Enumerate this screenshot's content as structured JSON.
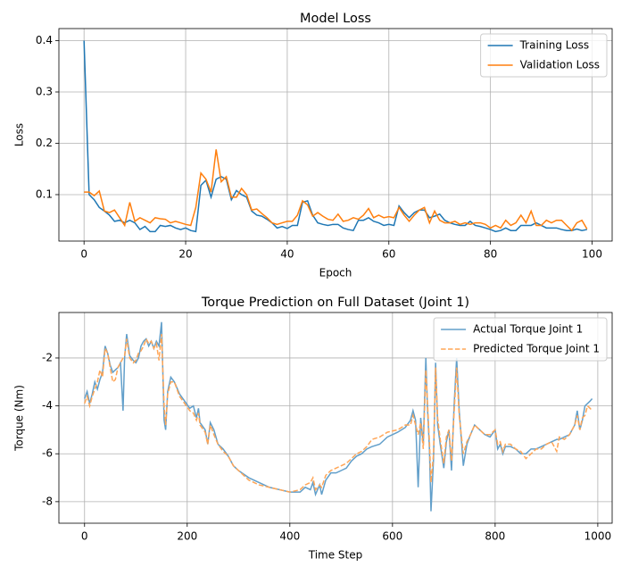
{
  "chart_data": [
    {
      "type": "line",
      "title": "Model Loss",
      "x_label": "Epoch",
      "y_label": "Loss",
      "x": [
        0,
        1,
        2,
        3,
        4,
        5,
        6,
        7,
        8,
        9,
        10,
        11,
        12,
        13,
        14,
        15,
        16,
        17,
        18,
        19,
        20,
        21,
        22,
        23,
        24,
        25,
        26,
        27,
        28,
        29,
        30,
        31,
        32,
        33,
        34,
        35,
        36,
        37,
        38,
        39,
        40,
        41,
        42,
        43,
        44,
        45,
        46,
        47,
        48,
        49,
        50,
        51,
        52,
        53,
        54,
        55,
        56,
        57,
        58,
        59,
        60,
        61,
        62,
        63,
        64,
        65,
        66,
        67,
        68,
        69,
        70,
        71,
        72,
        73,
        74,
        75,
        76,
        77,
        78,
        79,
        80,
        81,
        82,
        83,
        84,
        85,
        86,
        87,
        88,
        89,
        90,
        91,
        92,
        93,
        94,
        95,
        96,
        97,
        98,
        99
      ],
      "series": [
        {
          "name": "Training Loss",
          "color": "#1f77b4",
          "linestyle": "solid",
          "values": [
            0.4,
            0.1,
            0.09,
            0.075,
            0.068,
            0.06,
            0.048,
            0.05,
            0.045,
            0.05,
            0.045,
            0.032,
            0.038,
            0.028,
            0.028,
            0.04,
            0.038,
            0.04,
            0.035,
            0.032,
            0.035,
            0.03,
            0.028,
            0.118,
            0.128,
            0.095,
            0.13,
            0.135,
            0.13,
            0.09,
            0.108,
            0.1,
            0.095,
            0.068,
            0.06,
            0.058,
            0.052,
            0.045,
            0.035,
            0.038,
            0.034,
            0.04,
            0.04,
            0.085,
            0.088,
            0.06,
            0.045,
            0.042,
            0.04,
            0.042,
            0.042,
            0.035,
            0.032,
            0.03,
            0.05,
            0.05,
            0.055,
            0.048,
            0.045,
            0.04,
            0.042,
            0.04,
            0.078,
            0.065,
            0.055,
            0.065,
            0.07,
            0.07,
            0.055,
            0.058,
            0.062,
            0.05,
            0.045,
            0.042,
            0.04,
            0.04,
            0.048,
            0.04,
            0.038,
            0.035,
            0.032,
            0.028,
            0.03,
            0.035,
            0.03,
            0.03,
            0.04,
            0.04,
            0.04,
            0.045,
            0.04,
            0.035,
            0.035,
            0.035,
            0.032,
            0.03,
            0.03,
            0.033,
            0.03,
            0.032
          ]
        },
        {
          "name": "Validation Loss",
          "color": "#ff7f0e",
          "linestyle": "solid",
          "values": [
            0.105,
            0.105,
            0.098,
            0.107,
            0.068,
            0.065,
            0.07,
            0.055,
            0.04,
            0.085,
            0.048,
            0.055,
            0.05,
            0.045,
            0.055,
            0.053,
            0.052,
            0.045,
            0.048,
            0.045,
            0.042,
            0.04,
            0.075,
            0.142,
            0.13,
            0.105,
            0.188,
            0.125,
            0.135,
            0.095,
            0.095,
            0.112,
            0.1,
            0.07,
            0.072,
            0.063,
            0.055,
            0.045,
            0.042,
            0.045,
            0.048,
            0.048,
            0.06,
            0.088,
            0.08,
            0.058,
            0.065,
            0.058,
            0.052,
            0.05,
            0.062,
            0.048,
            0.05,
            0.055,
            0.052,
            0.06,
            0.073,
            0.055,
            0.06,
            0.055,
            0.057,
            0.055,
            0.075,
            0.06,
            0.048,
            0.06,
            0.07,
            0.075,
            0.045,
            0.068,
            0.05,
            0.045,
            0.045,
            0.048,
            0.042,
            0.045,
            0.042,
            0.045,
            0.045,
            0.042,
            0.035,
            0.04,
            0.035,
            0.05,
            0.04,
            0.045,
            0.06,
            0.045,
            0.068,
            0.04,
            0.04,
            0.05,
            0.045,
            0.05,
            0.05,
            0.04,
            0.03,
            0.045,
            0.05,
            0.033
          ]
        }
      ],
      "xlim": [
        -4.95,
        103.95
      ],
      "ylim": [
        0.0095,
        0.4235
      ],
      "xticks": [
        0,
        20,
        40,
        60,
        80,
        100
      ],
      "yticks": [
        0.1,
        0.2,
        0.3,
        0.4
      ],
      "grid": true,
      "legend": "upper right"
    },
    {
      "type": "line",
      "title": "Torque Prediction on Full Dataset (Joint 1)",
      "x_label": "Time Step",
      "y_label": "Torque (Nm)",
      "x": [
        0,
        5,
        10,
        15,
        20,
        25,
        30,
        35,
        40,
        45,
        50,
        55,
        60,
        65,
        70,
        75,
        78,
        82,
        88,
        95,
        100,
        105,
        110,
        115,
        120,
        125,
        130,
        135,
        140,
        145,
        150,
        155,
        158,
        162,
        168,
        175,
        185,
        195,
        205,
        212,
        218,
        222,
        225,
        235,
        240,
        245,
        252,
        260,
        270,
        280,
        290,
        300,
        320,
        340,
        360,
        380,
        400,
        420,
        430,
        440,
        445,
        450,
        458,
        462,
        470,
        480,
        490,
        500,
        510,
        520,
        530,
        540,
        550,
        560,
        575,
        590,
        610,
        625,
        635,
        640,
        645,
        650,
        655,
        660,
        665,
        668,
        672,
        675,
        680,
        684,
        688,
        693,
        700,
        705,
        710,
        715,
        720,
        725,
        730,
        738,
        745,
        752,
        760,
        770,
        780,
        790,
        800,
        805,
        810,
        815,
        820,
        830,
        840,
        850,
        860,
        870,
        880,
        890,
        900,
        910,
        920,
        925,
        935,
        945,
        955,
        960,
        965,
        970,
        975,
        980,
        985,
        989
      ],
      "series": [
        {
          "name": "Actual Torque Joint 1",
          "color": "#629fca",
          "linestyle": "solid",
          "values": [
            -3.7,
            -3.4,
            -3.9,
            -3.5,
            -3.0,
            -3.3,
            -2.9,
            -2.6,
            -1.5,
            -1.8,
            -2.3,
            -2.6,
            -2.5,
            -2.4,
            -2.2,
            -4.2,
            -2.0,
            -1.0,
            -1.9,
            -2.1,
            -2.2,
            -2.0,
            -1.5,
            -1.3,
            -1.2,
            -1.5,
            -1.3,
            -1.6,
            -1.3,
            -1.5,
            -0.5,
            -4.6,
            -5.0,
            -3.4,
            -2.8,
            -3.0,
            -3.5,
            -3.8,
            -4.1,
            -4.0,
            -4.5,
            -4.1,
            -4.7,
            -5.0,
            -5.6,
            -4.7,
            -5.0,
            -5.6,
            -5.8,
            -6.1,
            -6.5,
            -6.7,
            -7.0,
            -7.2,
            -7.4,
            -7.5,
            -7.6,
            -7.6,
            -7.4,
            -7.5,
            -7.2,
            -7.7,
            -7.3,
            -7.7,
            -7.1,
            -6.8,
            -6.8,
            -6.7,
            -6.6,
            -6.3,
            -6.1,
            -6.0,
            -5.8,
            -5.7,
            -5.6,
            -5.3,
            -5.1,
            -4.9,
            -4.6,
            -4.2,
            -4.6,
            -7.4,
            -4.5,
            -5.6,
            -2.0,
            -4.0,
            -5.8,
            -8.4,
            -6.2,
            -2.2,
            -4.8,
            -5.6,
            -6.6,
            -5.5,
            -5.0,
            -6.7,
            -4.0,
            -2.0,
            -4.2,
            -6.5,
            -5.6,
            -5.2,
            -4.8,
            -5.0,
            -5.2,
            -5.3,
            -5.0,
            -5.8,
            -5.6,
            -6.0,
            -5.7,
            -5.7,
            -5.8,
            -6.0,
            -6.0,
            -5.8,
            -5.8,
            -5.7,
            -5.6,
            -5.5,
            -5.4,
            -5.4,
            -5.3,
            -5.2,
            -4.8,
            -4.2,
            -5.0,
            -4.6,
            -4.0,
            -3.9,
            -3.8,
            -3.7
          ]
        },
        {
          "name": "Predicted Torque Joint 1",
          "color": "#ffa556",
          "linestyle": "dashed",
          "values": [
            -3.9,
            -3.6,
            -4.0,
            -3.6,
            -3.3,
            -3.0,
            -2.5,
            -2.8,
            -1.6,
            -1.8,
            -2.4,
            -3.0,
            -2.9,
            -2.4,
            -2.2,
            -2.0,
            -1.9,
            -1.2,
            -2.0,
            -2.2,
            -2.1,
            -1.8,
            -1.7,
            -1.5,
            -1.2,
            -1.4,
            -1.3,
            -1.6,
            -1.4,
            -2.1,
            -1.0,
            -4.0,
            -4.8,
            -3.5,
            -3.0,
            -3.0,
            -3.6,
            -3.9,
            -4.2,
            -4.3,
            -4.6,
            -4.3,
            -4.8,
            -5.1,
            -5.6,
            -4.8,
            -5.2,
            -5.6,
            -5.9,
            -6.1,
            -6.5,
            -6.7,
            -7.1,
            -7.3,
            -7.4,
            -7.5,
            -7.6,
            -7.5,
            -7.3,
            -7.2,
            -7.0,
            -7.5,
            -7.3,
            -7.4,
            -6.9,
            -6.7,
            -6.6,
            -6.5,
            -6.4,
            -6.2,
            -6.0,
            -5.9,
            -5.7,
            -5.4,
            -5.3,
            -5.1,
            -5.0,
            -4.8,
            -4.8,
            -4.4,
            -4.8,
            -5.2,
            -4.7,
            -5.8,
            -2.5,
            -3.8,
            -5.5,
            -7.2,
            -6.0,
            -2.4,
            -4.5,
            -5.4,
            -6.4,
            -5.3,
            -5.0,
            -6.3,
            -4.3,
            -2.4,
            -4.4,
            -6.0,
            -5.5,
            -5.2,
            -4.8,
            -5.0,
            -5.2,
            -5.2,
            -5.0,
            -5.6,
            -5.5,
            -5.9,
            -5.6,
            -5.6,
            -5.8,
            -5.9,
            -6.2,
            -6.0,
            -5.8,
            -5.8,
            -5.6,
            -5.5,
            -5.9,
            -5.3,
            -5.4,
            -5.2,
            -4.8,
            -4.4,
            -5.0,
            -4.5,
            -4.4,
            -4.0,
            -4.1,
            -4.2
          ]
        }
      ],
      "xlim": [
        -50,
        1028
      ],
      "ylim": [
        -8.9,
        -0.1
      ],
      "xticks": [
        0,
        200,
        400,
        600,
        800,
        1000
      ],
      "yticks": [
        -8,
        -6,
        -4,
        -2
      ],
      "grid": true,
      "legend": "upper right"
    }
  ]
}
